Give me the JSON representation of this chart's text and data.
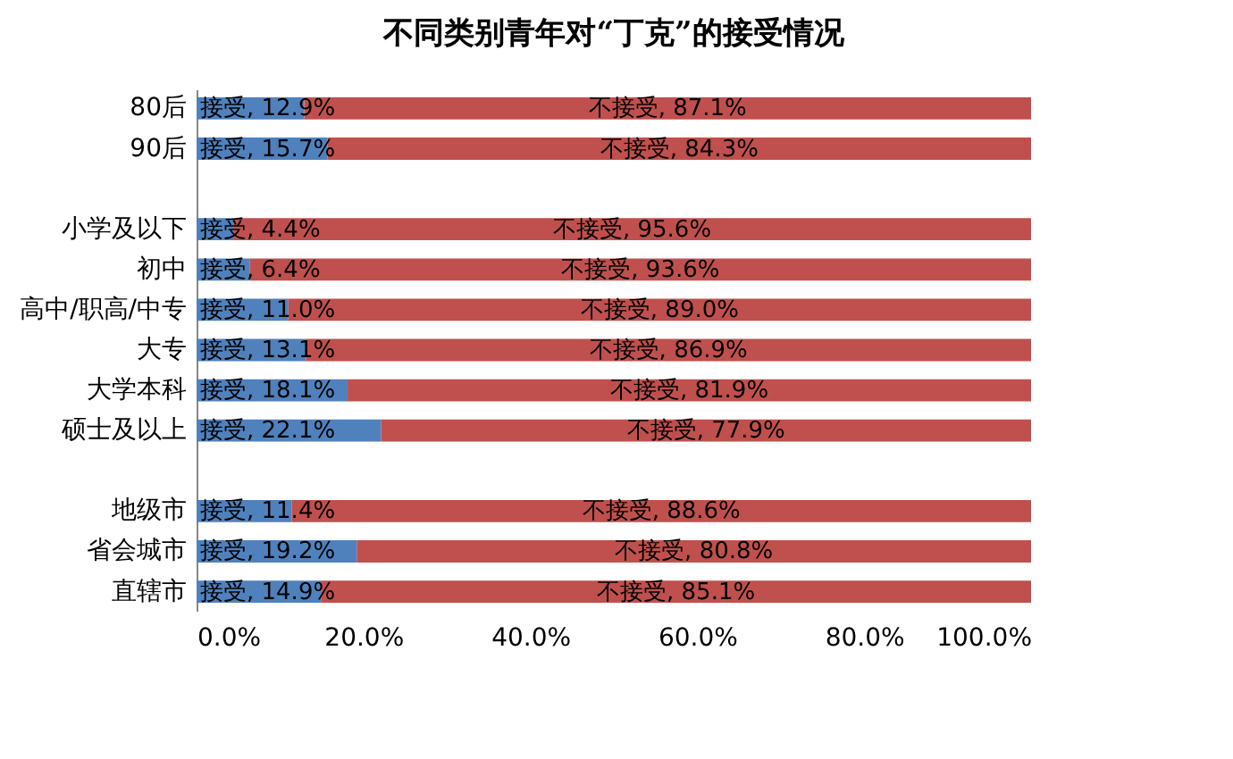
{
  "chart_data": {
    "type": "bar",
    "orientation": "horizontal",
    "stacked": true,
    "title": "不同类别青年对“丁克”的接受情况",
    "categories": [
      "80后",
      "90后",
      null,
      "小学及以下",
      "初中",
      "高中/职高/中专",
      "大专",
      "大学本科",
      "硕士及以上",
      null,
      "地级市",
      "省会城市",
      "直辖市"
    ],
    "series": [
      {
        "color": "#4f81bd",
        "values": [
          12.9,
          15.7,
          null,
          4.4,
          6.4,
          11.0,
          13.1,
          18.1,
          22.1,
          null,
          11.4,
          19.2,
          14.9
        ],
        "value_labels": [
          "接受, 12.9%",
          "接受, 15.7%",
          null,
          "接受, 4.4%",
          "接受, 6.4%",
          "接受, 11.0%",
          "接受, 13.1%",
          "接受, 18.1%",
          "接受, 22.1%",
          null,
          "接受, 11.4%",
          "接受, 19.2%",
          "接受, 14.9%"
        ]
      },
      {
        "color": "#c0504d",
        "values": [
          87.1,
          84.3,
          null,
          95.6,
          93.6,
          89.0,
          86.9,
          81.9,
          77.9,
          null,
          88.6,
          80.8,
          85.1
        ],
        "value_labels": [
          "不接受, 87.1%",
          "不接受, 84.3%",
          null,
          "不接受, 95.6%",
          "不接受, 93.6%",
          "不接受, 89.0%",
          "不接受, 86.9%",
          "不接受, 81.9%",
          "不接受, 77.9%",
          null,
          "不接受, 88.6%",
          "不接受, 80.8%",
          "不接受, 85.1%"
        ]
      }
    ],
    "xlim": [
      0,
      100
    ],
    "xticks": [
      {
        "value": 0,
        "label": "0.0%"
      },
      {
        "value": 20,
        "label": "20.0%"
      },
      {
        "value": 40,
        "label": "40.0%"
      },
      {
        "value": 60,
        "label": "60.0%"
      },
      {
        "value": 80,
        "label": "80.0%"
      },
      {
        "value": 100,
        "label": "100.0%"
      }
    ],
    "grid": false
  }
}
